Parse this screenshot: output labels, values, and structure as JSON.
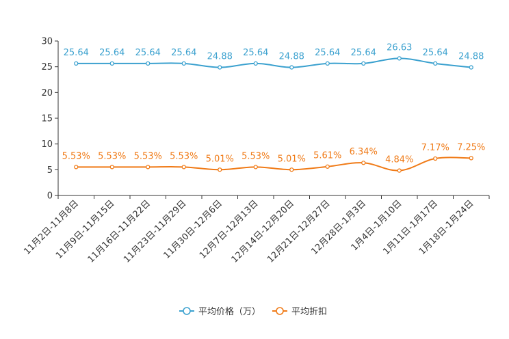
{
  "chart_data": {
    "type": "line",
    "title": "",
    "xlabel": "",
    "ylabel": "",
    "ylim": [
      0,
      30
    ],
    "yticks": [
      0,
      5,
      10,
      15,
      20,
      25,
      30
    ],
    "grid": false,
    "legend_position": "bottom-center",
    "categories": [
      "11月2日-11月8日",
      "11月9日-11月15日",
      "11月16日-11月22日",
      "11月23日-11月29日",
      "11月30日-12月6日",
      "12月7日-12月13日",
      "12月14日-12月20日",
      "12月21日-12月27日",
      "12月28日-1月3日",
      "1月4日-1月10日",
      "1月11日-1月17日",
      "1月18日-1月24日"
    ],
    "series": [
      {
        "name": "平均价格（万）",
        "color": "#3ba1cf",
        "values": [
          25.64,
          25.64,
          25.64,
          25.64,
          24.88,
          25.64,
          24.88,
          25.64,
          25.64,
          26.63,
          25.64,
          24.88
        ],
        "labels": [
          "25.64",
          "25.64",
          "25.64",
          "25.64",
          "24.88",
          "25.64",
          "24.88",
          "25.64",
          "25.64",
          "26.63",
          "25.64",
          "24.88"
        ]
      },
      {
        "name": "平均折扣",
        "color": "#f07a16",
        "values": [
          5.53,
          5.53,
          5.53,
          5.53,
          5.01,
          5.53,
          5.01,
          5.61,
          6.34,
          4.84,
          7.17,
          7.25
        ],
        "labels": [
          "5.53%",
          "5.53%",
          "5.53%",
          "5.53%",
          "5.01%",
          "5.53%",
          "5.01%",
          "5.61%",
          "6.34%",
          "4.84%",
          "7.17%",
          "7.25%"
        ]
      }
    ]
  }
}
